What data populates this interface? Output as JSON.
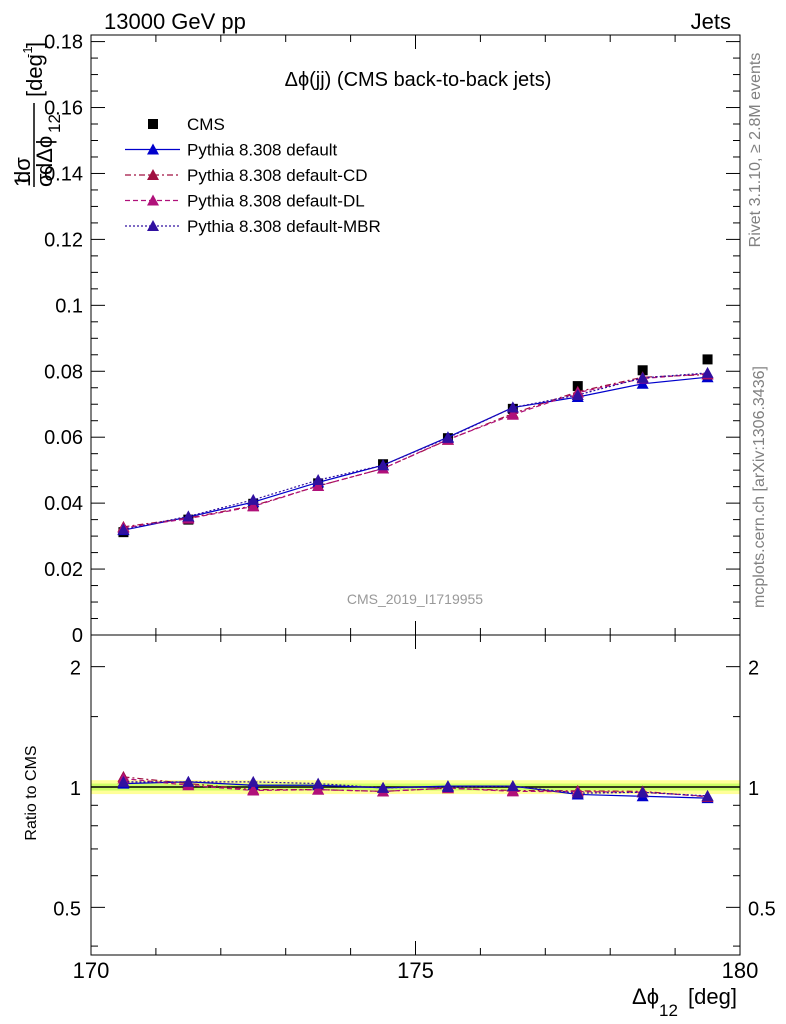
{
  "header": {
    "left": "13000 GeV pp",
    "right": "Jets"
  },
  "side_labels": {
    "rivet": "Rivet 3.1.10, ≥ 2.8M events",
    "mcplots": "mcplots.cern.ch [arXiv:1306.3436]"
  },
  "chart_data": [
    {
      "type": "scatter",
      "panel": "main",
      "title": "Δϕ(jj) (CMS back-to-back jets)",
      "watermark": "CMS_2019_I1719955",
      "ylabel_parts": {
        "num": "1",
        "num2": "dσ",
        "den_sigma": "σ",
        "den_rest": "dΔϕ",
        "den_sub": "12",
        "unit": "[deg",
        "unit_exp": "-1",
        "unit_close": "]"
      },
      "xlim": [
        170,
        180
      ],
      "ylim": [
        0,
        0.182
      ],
      "yticks": [
        0,
        0.02,
        0.04,
        0.06,
        0.08,
        0.1,
        0.12,
        0.14,
        0.16,
        0.18
      ],
      "ytick_labels": [
        "0",
        "0.02",
        "0.04",
        "0.06",
        "0.08",
        "0.1",
        "0.12",
        "0.14",
        "0.16",
        "0.18"
      ],
      "legend_position": "top-left",
      "x": [
        170.5,
        171.5,
        172.5,
        173.5,
        174.5,
        175.5,
        176.5,
        177.5,
        178.5,
        179.5
      ],
      "series": [
        {
          "name": "CMS",
          "style": "square",
          "color": "#000000",
          "values": [
            0.0312,
            0.035,
            0.0398,
            0.046,
            0.0518,
            0.0597,
            0.0686,
            0.0755,
            0.0803,
            0.0836
          ]
        },
        {
          "name": "Pythia 8.308 default",
          "style": "solid",
          "color": "#0000cc",
          "values": [
            0.0318,
            0.0358,
            0.0403,
            0.0463,
            0.0515,
            0.06,
            0.069,
            0.0722,
            0.0762,
            0.0782
          ]
        },
        {
          "name": "Pythia 8.308 default-CD",
          "style": "dashdot",
          "color": "#a01040",
          "values": [
            0.0328,
            0.0355,
            0.0392,
            0.0452,
            0.0505,
            0.0592,
            0.0672,
            0.0738,
            0.0782,
            0.079
          ]
        },
        {
          "name": "Pythia 8.308 default-DL",
          "style": "dashed",
          "color": "#b0107a",
          "values": [
            0.0325,
            0.0353,
            0.039,
            0.0452,
            0.0505,
            0.0593,
            0.0668,
            0.0735,
            0.0778,
            0.0793
          ]
        },
        {
          "name": "Pythia 8.308 default-MBR",
          "style": "dotted",
          "color": "#3010a0",
          "values": [
            0.032,
            0.036,
            0.041,
            0.047,
            0.0515,
            0.0598,
            0.069,
            0.0728,
            0.078,
            0.0795
          ]
        }
      ]
    },
    {
      "type": "scatter",
      "panel": "ratio",
      "ylabel": "Ratio to CMS",
      "xlabel": "Δϕ",
      "xlabel_sub": "12",
      "xlabel_unit": "[deg]",
      "xlim": [
        170,
        180
      ],
      "ylim": [
        0.38,
        2.4
      ],
      "log_y": true,
      "xticks": [
        170,
        175,
        180
      ],
      "xtick_labels": [
        "170",
        "175",
        "180"
      ],
      "yticks": [
        0.5,
        1,
        2
      ],
      "ytick_labels": [
        "0.5",
        "1",
        "2"
      ],
      "band": {
        "inner": 0.02,
        "outer": 0.04,
        "inner_color": "#ccff66",
        "outer_color": "#ffff99"
      },
      "x": [
        170.5,
        171.5,
        172.5,
        173.5,
        174.5,
        175.5,
        176.5,
        177.5,
        178.5,
        179.5
      ],
      "series": [
        {
          "name": "Pythia 8.308 default",
          "style": "solid",
          "color": "#0000cc",
          "values": [
            1.02,
            1.03,
            1.01,
            1.01,
            0.995,
            1.005,
            1.005,
            0.958,
            0.948,
            0.938
          ]
        },
        {
          "name": "Pythia 8.308 default-CD",
          "style": "dashdot",
          "color": "#a01040",
          "values": [
            1.06,
            1.02,
            0.985,
            0.985,
            0.975,
            0.993,
            0.98,
            0.978,
            0.975,
            0.945
          ]
        },
        {
          "name": "Pythia 8.308 default-DL",
          "style": "dashed",
          "color": "#b0107a",
          "values": [
            1.05,
            1.01,
            0.98,
            0.985,
            0.975,
            0.994,
            0.975,
            0.974,
            0.97,
            0.948
          ]
        },
        {
          "name": "Pythia 8.308 default-MBR",
          "style": "dotted",
          "color": "#3010a0",
          "values": [
            1.03,
            1.03,
            1.03,
            1.02,
            0.995,
            1.0,
            1.005,
            0.965,
            0.97,
            0.95
          ]
        }
      ]
    }
  ]
}
